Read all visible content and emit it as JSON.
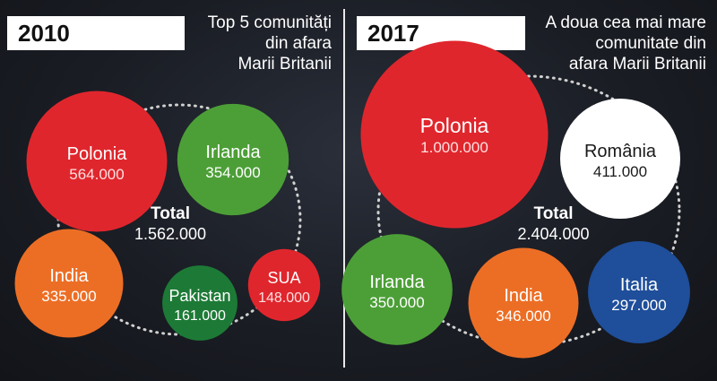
{
  "colors": {
    "red": "#e0262d",
    "green": "#4c9f37",
    "orange": "#ec6e25",
    "dark_green": "#1d7a36",
    "white": "#ffffff",
    "blue": "#1f4e9a"
  },
  "panel_2010": {
    "year": "2010",
    "headline": [
      "Top 5 comunități",
      "din afara",
      "Marii Britanii"
    ],
    "total_label": "Total",
    "total_value": "1.562.000"
  },
  "panel_2017": {
    "year": "2017",
    "headline": [
      "A doua cea mai mare",
      "comunitate din",
      "afara Marii Britanii"
    ],
    "total_label": "Total",
    "total_value": "2.404.000"
  },
  "chart_data": [
    {
      "type": "bubble",
      "title": "2010",
      "categories": [
        "Polonia",
        "Irlanda",
        "India",
        "Pakistan",
        "SUA"
      ],
      "values": [
        564000,
        354000,
        335000,
        161000,
        148000
      ],
      "value_labels": [
        "564.000",
        "354.000",
        "335.000",
        "161.000",
        "148.000"
      ],
      "colors": [
        "#e0262d",
        "#4c9f37",
        "#ec6e25",
        "#1d7a36",
        "#e0262d"
      ],
      "total": 1562000
    },
    {
      "type": "bubble",
      "title": "2017",
      "categories": [
        "Polonia",
        "România",
        "Irlanda",
        "India",
        "Italia"
      ],
      "values": [
        1000000,
        411000,
        350000,
        346000,
        297000
      ],
      "value_labels": [
        "1.000.000",
        "411.000",
        "350.000",
        "346.000",
        "297.000"
      ],
      "colors": [
        "#e0262d",
        "#ffffff",
        "#4c9f37",
        "#ec6e25",
        "#1f4e9a"
      ],
      "total": 2404000
    }
  ]
}
